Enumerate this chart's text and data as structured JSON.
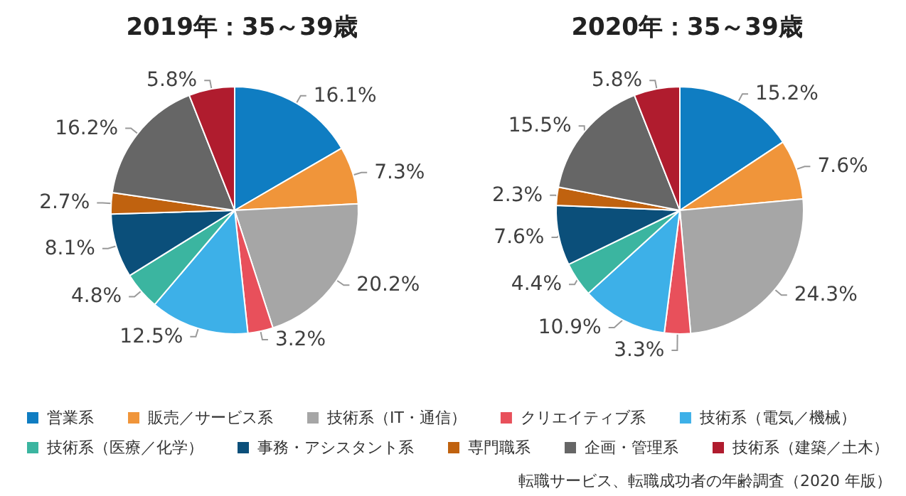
{
  "chart_data": [
    {
      "type": "pie",
      "title": "2019年：35～39歳",
      "legend": "bottom",
      "categories": [
        "営業系",
        "販売／サービス系",
        "技術系（IT・通信）",
        "クリエイティブ系",
        "技術系（電気／機械）",
        "技術系（医療／化学）",
        "事務・アシスタント系",
        "専門職系",
        "企画・管理系",
        "技術系（建築／土木）"
      ],
      "values": [
        16.1,
        7.3,
        20.2,
        3.2,
        12.5,
        4.8,
        8.1,
        2.7,
        16.2,
        5.8
      ],
      "value_labels": [
        "16.1%",
        "7.3%",
        "20.2%",
        "3.2%",
        "12.5%",
        "4.8%",
        "8.1%",
        "2.7%",
        "16.2%",
        "5.8%"
      ],
      "colors": [
        "#0f7dc2",
        "#f0953a",
        "#a6a6a6",
        "#e8505b",
        "#3db0e8",
        "#3bb5a0",
        "#0b4f7a",
        "#c0620f",
        "#666666",
        "#b01c2e"
      ]
    },
    {
      "type": "pie",
      "title": "2020年：35～39歳",
      "categories": [
        null,
        null,
        null,
        null,
        null,
        null,
        null,
        null,
        null,
        null
      ],
      "values": [
        15.2,
        7.6,
        24.3,
        3.3,
        10.9,
        4.4,
        7.6,
        2.3,
        15.5,
        5.8
      ],
      "value_labels": [
        "15.2%",
        "7.6%",
        "24.3%",
        "3.3%",
        "10.9%",
        "4.4%",
        "7.6%",
        "2.3%",
        "15.5%",
        "5.8%"
      ],
      "colors": [
        "#0f7dc2",
        "#f0953a",
        "#a6a6a6",
        "#e8505b",
        "#3db0e8",
        "#3bb5a0",
        "#0b4f7a",
        "#c0620f",
        "#666666",
        "#b01c2e"
      ],
      "annotations": [
        "転職サービス、転職成功者の年齢調査（2020 年版）"
      ]
    }
  ]
}
